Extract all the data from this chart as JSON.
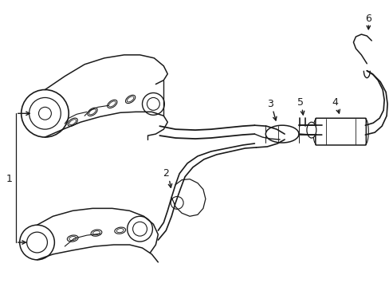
{
  "bg_color": "#ffffff",
  "line_color": "#1a1a1a",
  "line_width": 1.0,
  "fig_width": 4.89,
  "fig_height": 3.6,
  "dpi": 100
}
